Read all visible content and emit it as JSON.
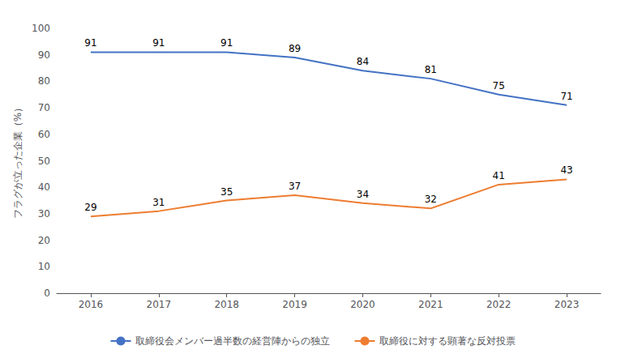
{
  "chart_data": {
    "type": "line",
    "ylabel": "フラグが立った企業（%）",
    "categories": [
      "2016",
      "2017",
      "2018",
      "2019",
      "2020",
      "2021",
      "2022",
      "2023"
    ],
    "series": [
      {
        "name": "取締役会メンバー過半数の経営陣からの独立",
        "color": "#4472C4",
        "values": [
          91,
          91,
          91,
          89,
          84,
          81,
          75,
          71
        ]
      },
      {
        "name": "取締役に対する顕著な反対投票",
        "color": "#ED7D31",
        "values": [
          29,
          31,
          35,
          37,
          34,
          32,
          41,
          43
        ]
      }
    ],
    "ylim": [
      0,
      100
    ],
    "yticks": [
      0,
      10,
      20,
      30,
      40,
      50,
      60,
      70,
      80,
      90,
      100
    ],
    "grid": false,
    "legend": "bottom",
    "data_labels": true
  }
}
